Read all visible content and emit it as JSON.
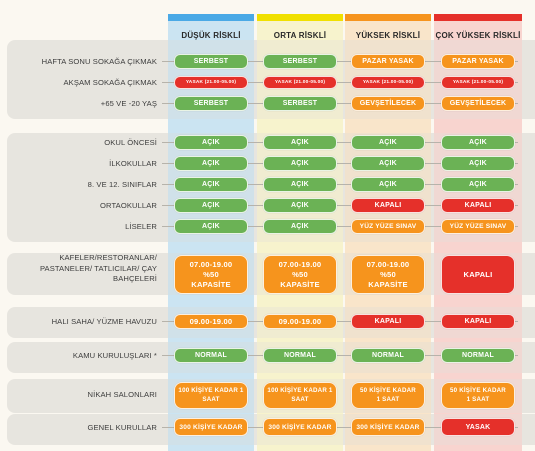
{
  "colors": {
    "col1": "#4aa9e6",
    "col2": "#f0e000",
    "col3": "#f6941d",
    "col4": "#e5302a",
    "green": "#6bb255",
    "red": "#e5302a",
    "orange": "#f6941d"
  },
  "columns": [
    "DÜŞÜK RİSKLİ",
    "ORTA RİSKLİ",
    "YÜKSEK RİSKLİ",
    "ÇOK YÜKSEK RİSKLİ"
  ],
  "rows": {
    "weekend": {
      "label": "HAFTA SONU SOKAĞA ÇIKMAK",
      "cells": [
        {
          "text": "SERBEST",
          "color": "green"
        },
        {
          "text": "SERBEST",
          "color": "green"
        },
        {
          "text": "PAZAR YASAK",
          "color": "orange"
        },
        {
          "text": "PAZAR YASAK",
          "color": "orange"
        }
      ]
    },
    "evening": {
      "label": "AKŞAM SOKAĞA ÇIKMAK",
      "cells": [
        {
          "text": "YASAK (21.00-05.00)",
          "color": "red"
        },
        {
          "text": "YASAK (21.00-05.00)",
          "color": "red"
        },
        {
          "text": "YASAK (21.00-05.00)",
          "color": "red"
        },
        {
          "text": "YASAK (21.00-05.00)",
          "color": "red"
        }
      ]
    },
    "age": {
      "label": "+65 VE -20 YAŞ",
      "cells": [
        {
          "text": "SERBEST",
          "color": "green"
        },
        {
          "text": "SERBEST",
          "color": "green"
        },
        {
          "text": "GEVŞETİLECEK",
          "color": "orange"
        },
        {
          "text": "GEVŞETİLECEK",
          "color": "orange"
        }
      ]
    },
    "preschool": {
      "label": "OKUL ÖNCESİ",
      "cells": [
        {
          "text": "AÇIK",
          "color": "green"
        },
        {
          "text": "AÇIK",
          "color": "green"
        },
        {
          "text": "AÇIK",
          "color": "green"
        },
        {
          "text": "AÇIK",
          "color": "green"
        }
      ]
    },
    "primary": {
      "label": "İLKOKULLAR",
      "cells": [
        {
          "text": "AÇIK",
          "color": "green"
        },
        {
          "text": "AÇIK",
          "color": "green"
        },
        {
          "text": "AÇIK",
          "color": "green"
        },
        {
          "text": "AÇIK",
          "color": "green"
        }
      ]
    },
    "grades": {
      "label": "8. VE 12. SINIFLAR",
      "cells": [
        {
          "text": "AÇIK",
          "color": "green"
        },
        {
          "text": "AÇIK",
          "color": "green"
        },
        {
          "text": "AÇIK",
          "color": "green"
        },
        {
          "text": "AÇIK",
          "color": "green"
        }
      ]
    },
    "middle": {
      "label": "ORTAOKULLAR",
      "cells": [
        {
          "text": "AÇIK",
          "color": "green"
        },
        {
          "text": "AÇIK",
          "color": "green"
        },
        {
          "text": "KAPALI",
          "color": "red"
        },
        {
          "text": "KAPALI",
          "color": "red"
        }
      ]
    },
    "high": {
      "label": "LİSELER",
      "cells": [
        {
          "text": "AÇIK",
          "color": "green"
        },
        {
          "text": "AÇIK",
          "color": "green"
        },
        {
          "text": "YÜZ YÜZE SINAV",
          "color": "orange"
        },
        {
          "text": "YÜZ YÜZE SINAV",
          "color": "orange"
        }
      ]
    },
    "cafes": {
      "label": "KAFELER/RESTORANLAR/ PASTANELER/ TATLICILAR/ ÇAY BAHÇELERİ",
      "cells": [
        {
          "text": "07.00-19.00 %50 KAPASİTE",
          "color": "orange"
        },
        {
          "text": "07.00-19.00 %50 KAPASİTE",
          "color": "orange"
        },
        {
          "text": "07.00-19.00 %50 KAPASİTE",
          "color": "orange"
        },
        {
          "text": "KAPALI",
          "color": "red"
        }
      ]
    },
    "pitch": {
      "label": "HALI SAHA/ YÜZME HAVUZU",
      "cells": [
        {
          "text": "09.00-19.00",
          "color": "orange"
        },
        {
          "text": "09.00-19.00",
          "color": "orange"
        },
        {
          "text": "KAPALI",
          "color": "red"
        },
        {
          "text": "KAPALI",
          "color": "red"
        }
      ]
    },
    "public": {
      "label": "KAMU KURULUŞLARI *",
      "cells": [
        {
          "text": "NORMAL",
          "color": "green"
        },
        {
          "text": "NORMAL",
          "color": "green"
        },
        {
          "text": "NORMAL",
          "color": "green"
        },
        {
          "text": "NORMAL",
          "color": "green"
        }
      ]
    },
    "wedding": {
      "label": "NİKAH SALONLARI",
      "cells": [
        {
          "text": "100 KİŞİYE KADAR 1 SAAT",
          "color": "orange"
        },
        {
          "text": "100 KİŞİYE KADAR 1 SAAT",
          "color": "orange"
        },
        {
          "text": "50 KİŞİYE KADAR 1 SAAT",
          "color": "orange"
        },
        {
          "text": "50 KİŞİYE KADAR 1 SAAT",
          "color": "orange"
        }
      ]
    },
    "general": {
      "label": "GENEL KURULLAR",
      "cells": [
        {
          "text": "300 KİŞİYE KADAR",
          "color": "orange"
        },
        {
          "text": "300 KİŞİYE KADAR",
          "color": "orange"
        },
        {
          "text": "300 KİŞİYE KADAR",
          "color": "orange"
        },
        {
          "text": "YASAK",
          "color": "red"
        }
      ]
    }
  }
}
